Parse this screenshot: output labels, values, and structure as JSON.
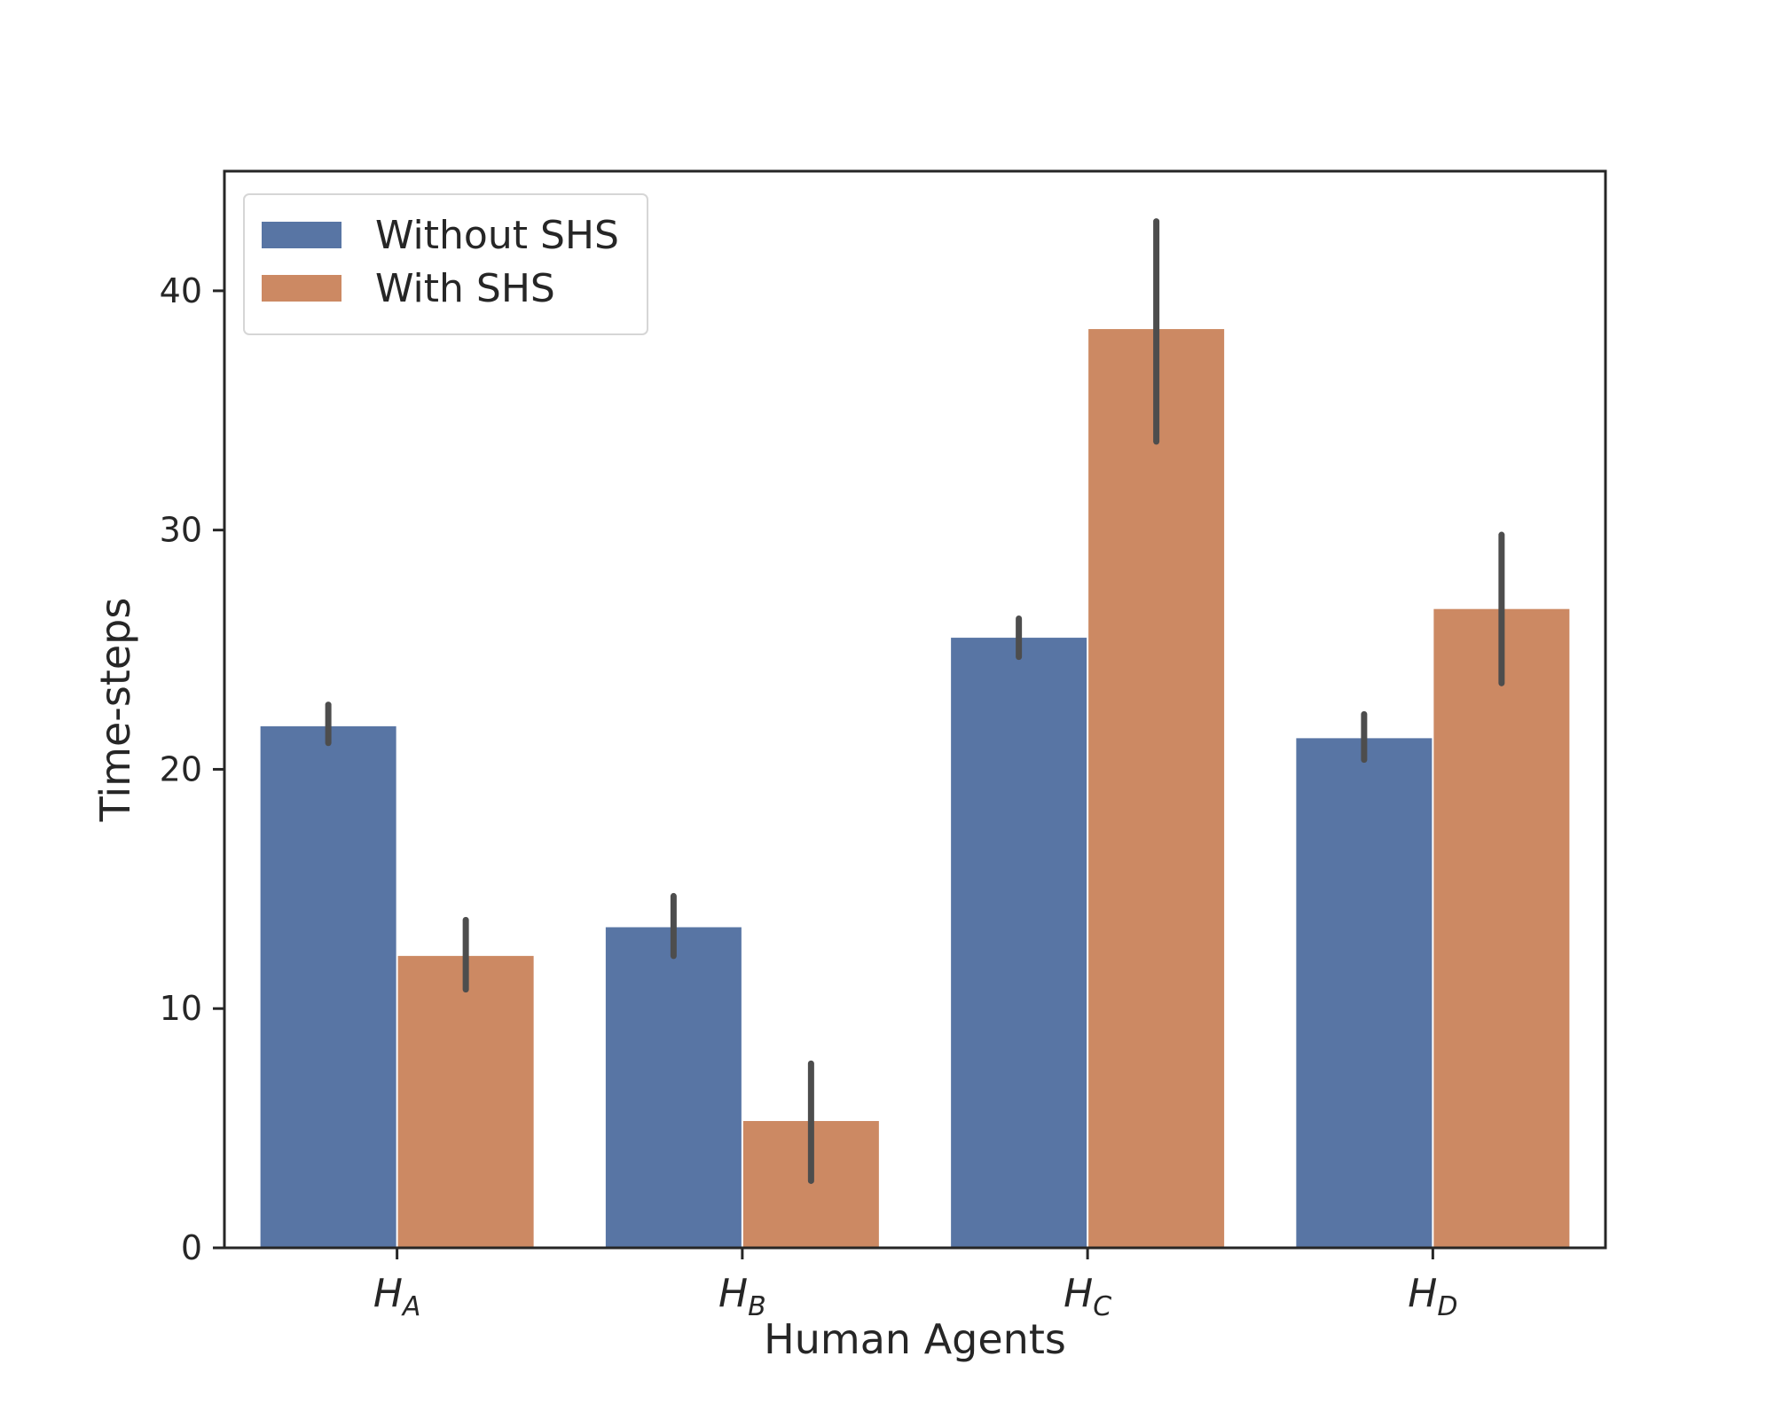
{
  "chart_data": {
    "type": "bar",
    "categories": [
      "H_A",
      "H_B",
      "H_C",
      "H_D"
    ],
    "category_labels": [
      {
        "main": "H",
        "sub": "A"
      },
      {
        "main": "H",
        "sub": "B"
      },
      {
        "main": "H",
        "sub": "C"
      },
      {
        "main": "H",
        "sub": "D"
      }
    ],
    "series": [
      {
        "name": "Without SHS",
        "color": "#5875a4",
        "values": [
          21.8,
          13.4,
          25.5,
          21.3
        ],
        "error_low": [
          21.1,
          12.2,
          24.7,
          20.4
        ],
        "error_high": [
          22.7,
          14.7,
          26.3,
          22.3
        ]
      },
      {
        "name": "With SHS",
        "color": "#cc8963",
        "values": [
          12.2,
          5.3,
          38.4,
          26.7
        ],
        "error_low": [
          10.8,
          2.8,
          33.7,
          23.6
        ],
        "error_high": [
          13.7,
          7.7,
          42.9,
          29.8
        ]
      }
    ],
    "xlabel": "Human Agents",
    "ylabel": "Time-steps",
    "ylim": [
      0,
      45
    ],
    "yticks": [
      0,
      10,
      20,
      30,
      40
    ],
    "legend_position": "top-left",
    "grid": false,
    "error_bar_color": "#4d4d4d"
  }
}
